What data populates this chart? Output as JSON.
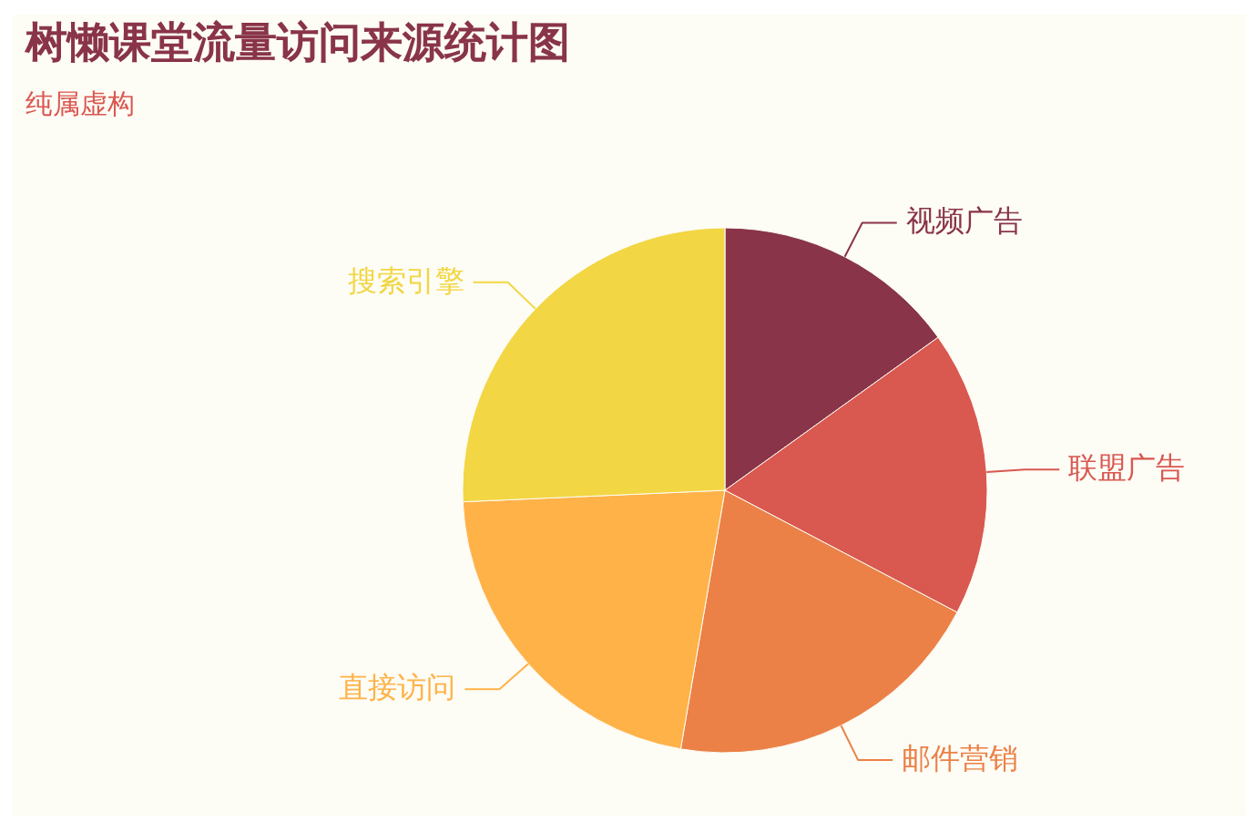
{
  "chart_data": {
    "type": "pie",
    "title": "树懒课堂流量访问来源统计图",
    "subtitle": "纯属虚构",
    "categories": [
      "视频广告",
      "联盟广告",
      "邮件营销",
      "直接访问",
      "搜索引擎"
    ],
    "values": [
      15.1,
      17.6,
      20.0,
      21.6,
      25.7
    ],
    "colors": [
      "#893448",
      "#d95850",
      "#eb8146",
      "#ffb248",
      "#f2d643"
    ]
  }
}
